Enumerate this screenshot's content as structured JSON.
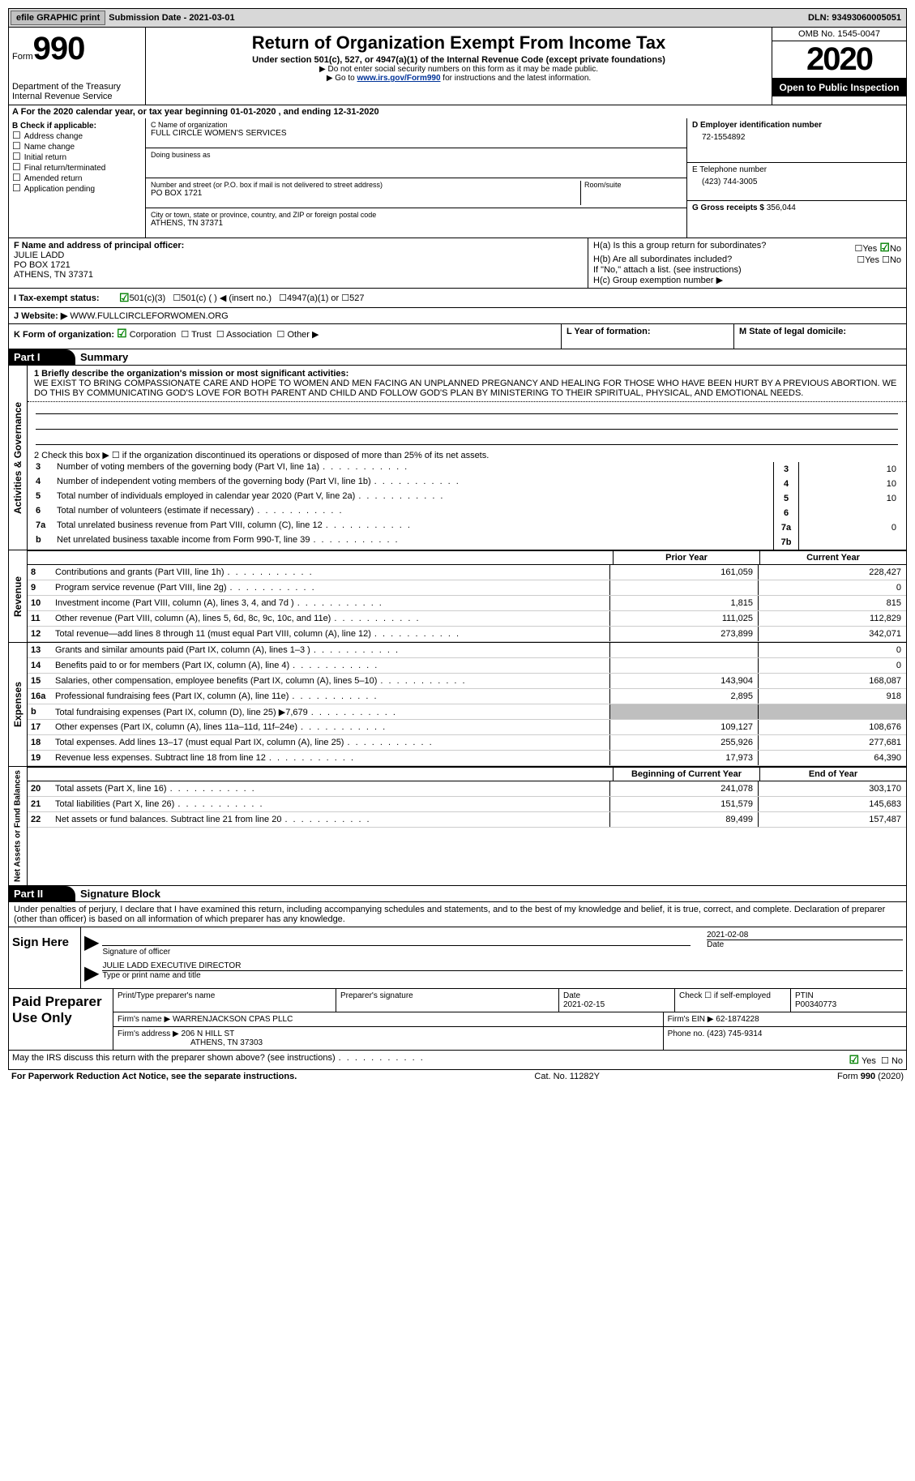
{
  "topbar": {
    "efile_btn": "efile GRAPHIC print",
    "submission": "Submission Date - 2021-03-01",
    "dln": "DLN: 93493060005051"
  },
  "header": {
    "form_word": "Form",
    "form_number": "990",
    "dept": "Department of the Treasury\nInternal Revenue Service",
    "title": "Return of Organization Exempt From Income Tax",
    "subtitle": "Under section 501(c), 527, or 4947(a)(1) of the Internal Revenue Code (except private foundations)",
    "note1": "▶ Do not enter social security numbers on this form as it may be made public.",
    "note2_pre": "▶ Go to ",
    "note2_link": "www.irs.gov/Form990",
    "note2_post": " for instructions and the latest information.",
    "omb": "OMB No. 1545-0047",
    "year": "2020",
    "open": "Open to Public Inspection"
  },
  "period": "For the 2020 calendar year, or tax year beginning 01-01-2020    , and ending 12-31-2020",
  "blockB": {
    "label": "B Check if applicable:",
    "items": [
      "Address change",
      "Name change",
      "Initial return",
      "Final return/terminated",
      "Amended return",
      "Application pending"
    ]
  },
  "blockC": {
    "name_label": "C Name of organization",
    "name": "FULL CIRCLE WOMEN'S SERVICES",
    "dba_label": "Doing business as",
    "street_label": "Number and street (or P.O. box if mail is not delivered to street address)",
    "room_label": "Room/suite",
    "street": "PO BOX 1721",
    "city_label": "City or town, state or province, country, and ZIP or foreign postal code",
    "city": "ATHENS, TN  37371"
  },
  "blockD": {
    "label": "D Employer identification number",
    "ein": "72-1554892",
    "phone_label": "E Telephone number",
    "phone": "(423) 744-3005",
    "gross_label": "G Gross receipts $",
    "gross": "356,044"
  },
  "blockF": {
    "label": "F  Name and address of principal officer:",
    "name": "JULIE LADD",
    "addr1": "PO BOX 1721",
    "addr2": "ATHENS, TN  37371"
  },
  "blockH": {
    "ha": "H(a)  Is this a group return for subordinates?",
    "ha_yes": "Yes",
    "ha_no": "No",
    "hb": "H(b)  Are all subordinates included?",
    "hb_yes": "Yes",
    "hb_no": "No",
    "hb_note": "If \"No,\" attach a list. (see instructions)",
    "hc": "H(c)  Group exemption number ▶"
  },
  "rowI": {
    "label": "I   Tax-exempt status:",
    "opt1": "501(c)(3)",
    "opt2": "501(c) (  ) ◀ (insert no.)",
    "opt3": "4947(a)(1) or",
    "opt4": "527"
  },
  "rowJ": {
    "label": "J   Website: ▶",
    "value": "WWW.FULLCIRCLEFORWOMEN.ORG"
  },
  "rowK": {
    "label": "K Form of organization:",
    "opt1": "Corporation",
    "opt2": "Trust",
    "opt3": "Association",
    "opt4": "Other ▶",
    "l_label": "L Year of formation:",
    "m_label": "M State of legal domicile:"
  },
  "part1": {
    "header": "Part I",
    "title": "Summary",
    "vlabel_gov": "Activities & Governance",
    "vlabel_rev": "Revenue",
    "vlabel_exp": "Expenses",
    "vlabel_net": "Net Assets or Fund Balances",
    "line1_label": "1  Briefly describe the organization's mission or most significant activities:",
    "mission": "WE EXIST TO BRING COMPASSIONATE CARE AND HOPE TO WOMEN AND MEN FACING AN UNPLANNED PREGNANCY AND HEALING FOR THOSE WHO HAVE BEEN HURT BY A PREVIOUS ABORTION. WE DO THIS BY COMMUNICATING GOD'S LOVE FOR BOTH PARENT AND CHILD AND FOLLOW GOD'S PLAN BY MINISTERING TO THEIR SPIRITUAL, PHYSICAL, AND EMOTIONAL NEEDS.",
    "line2": "2    Check this box ▶ ☐  if the organization discontinued its operations or disposed of more than 25% of its net assets.",
    "lines_gov": [
      {
        "n": "3",
        "d": "Number of voting members of the governing body (Part VI, line 1a)",
        "box": "3",
        "v": "10"
      },
      {
        "n": "4",
        "d": "Number of independent voting members of the governing body (Part VI, line 1b)",
        "box": "4",
        "v": "10"
      },
      {
        "n": "5",
        "d": "Total number of individuals employed in calendar year 2020 (Part V, line 2a)",
        "box": "5",
        "v": "10"
      },
      {
        "n": "6",
        "d": "Total number of volunteers (estimate if necessary)",
        "box": "6",
        "v": ""
      },
      {
        "n": "7a",
        "d": "Total unrelated business revenue from Part VIII, column (C), line 12",
        "box": "7a",
        "v": "0"
      },
      {
        "n": "b",
        "d": "Net unrelated business taxable income from Form 990-T, line 39",
        "box": "7b",
        "v": ""
      }
    ],
    "hdr_prior": "Prior Year",
    "hdr_current": "Current Year",
    "lines_rev": [
      {
        "n": "8",
        "d": "Contributions and grants (Part VIII, line 1h)",
        "p": "161,059",
        "c": "228,427"
      },
      {
        "n": "9",
        "d": "Program service revenue (Part VIII, line 2g)",
        "p": "",
        "c": "0"
      },
      {
        "n": "10",
        "d": "Investment income (Part VIII, column (A), lines 3, 4, and 7d )",
        "p": "1,815",
        "c": "815"
      },
      {
        "n": "11",
        "d": "Other revenue (Part VIII, column (A), lines 5, 6d, 8c, 9c, 10c, and 11e)",
        "p": "111,025",
        "c": "112,829"
      },
      {
        "n": "12",
        "d": "Total revenue—add lines 8 through 11 (must equal Part VIII, column (A), line 12)",
        "p": "273,899",
        "c": "342,071"
      }
    ],
    "lines_exp": [
      {
        "n": "13",
        "d": "Grants and similar amounts paid (Part IX, column (A), lines 1–3 )",
        "p": "",
        "c": "0"
      },
      {
        "n": "14",
        "d": "Benefits paid to or for members (Part IX, column (A), line 4)",
        "p": "",
        "c": "0"
      },
      {
        "n": "15",
        "d": "Salaries, other compensation, employee benefits (Part IX, column (A), lines 5–10)",
        "p": "143,904",
        "c": "168,087"
      },
      {
        "n": "16a",
        "d": "Professional fundraising fees (Part IX, column (A), line 11e)",
        "p": "2,895",
        "c": "918"
      },
      {
        "n": "b",
        "d": "Total fundraising expenses (Part IX, column (D), line 25) ▶7,679",
        "p": "__shade__",
        "c": "__shade__"
      },
      {
        "n": "17",
        "d": "Other expenses (Part IX, column (A), lines 11a–11d, 11f–24e)",
        "p": "109,127",
        "c": "108,676"
      },
      {
        "n": "18",
        "d": "Total expenses. Add lines 13–17 (must equal Part IX, column (A), line 25)",
        "p": "255,926",
        "c": "277,681"
      },
      {
        "n": "19",
        "d": "Revenue less expenses. Subtract line 18 from line 12",
        "p": "17,973",
        "c": "64,390"
      }
    ],
    "hdr_beg": "Beginning of Current Year",
    "hdr_end": "End of Year",
    "lines_net": [
      {
        "n": "20",
        "d": "Total assets (Part X, line 16)",
        "p": "241,078",
        "c": "303,170"
      },
      {
        "n": "21",
        "d": "Total liabilities (Part X, line 26)",
        "p": "151,579",
        "c": "145,683"
      },
      {
        "n": "22",
        "d": "Net assets or fund balances. Subtract line 21 from line 20",
        "p": "89,499",
        "c": "157,487"
      }
    ]
  },
  "part2": {
    "header": "Part II",
    "title": "Signature Block",
    "declaration": "Under penalties of perjury, I declare that I have examined this return, including accompanying schedules and statements, and to the best of my knowledge and belief, it is true, correct, and complete. Declaration of preparer (other than officer) is based on all information of which preparer has any knowledge.",
    "sign_here": "Sign Here",
    "sig_officer": "Signature of officer",
    "sig_date": "2021-02-08",
    "sig_date_label": "Date",
    "officer_name": "JULIE LADD  EXECUTIVE DIRECTOR",
    "officer_name_label": "Type or print name and title",
    "paid": "Paid Preparer Use Only",
    "prep_h1": "Print/Type preparer's name",
    "prep_h2": "Preparer's signature",
    "prep_h3_label": "Date",
    "prep_h3": "2021-02-15",
    "prep_h4": "Check ☐ if self-employed",
    "prep_h5_label": "PTIN",
    "prep_h5": "P00340773",
    "firm_name_label": "Firm's name    ▶",
    "firm_name": "WARRENJACKSON CPAS PLLC",
    "firm_ein_label": "Firm's EIN ▶",
    "firm_ein": "62-1874228",
    "firm_addr_label": "Firm's address ▶",
    "firm_addr1": "206 N HILL ST",
    "firm_addr2": "ATHENS, TN  37303",
    "firm_phone_label": "Phone no.",
    "firm_phone": "(423) 745-9314",
    "discuss": "May the IRS discuss this return with the preparer shown above? (see instructions)",
    "discuss_yes": "Yes",
    "discuss_no": "No"
  },
  "footer": {
    "pra": "For Paperwork Reduction Act Notice, see the separate instructions.",
    "cat": "Cat. No. 11282Y",
    "form": "Form 990 (2020)"
  }
}
